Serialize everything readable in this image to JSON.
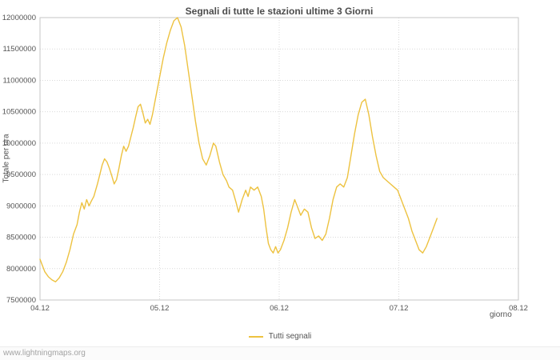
{
  "page": {
    "watermark": "www.lightningmaps.org"
  },
  "chart_data": {
    "type": "line",
    "title": "Segnali di tutte le stazioni ultime 3 Giorni",
    "xlabel": "giorno",
    "ylabel": "Totale per ora",
    "x_ticks": [
      "04.12",
      "05.12",
      "06.12",
      "07.12",
      "08.12"
    ],
    "x_range": [
      0,
      4
    ],
    "ylim": [
      7500000,
      12000000
    ],
    "y_tick_step": 500000,
    "grid": true,
    "legend": {
      "position": "bottom-center",
      "entries": [
        {
          "label": "Tutti segnali",
          "color": "#edc240"
        }
      ]
    },
    "series": [
      {
        "name": "Tutti segnali",
        "color": "#edc240",
        "points": [
          [
            0.0,
            8150000
          ],
          [
            0.02,
            8050000
          ],
          [
            0.04,
            7950000
          ],
          [
            0.07,
            7870000
          ],
          [
            0.1,
            7820000
          ],
          [
            0.13,
            7790000
          ],
          [
            0.16,
            7850000
          ],
          [
            0.19,
            7950000
          ],
          [
            0.22,
            8100000
          ],
          [
            0.25,
            8300000
          ],
          [
            0.28,
            8550000
          ],
          [
            0.31,
            8700000
          ],
          [
            0.33,
            8900000
          ],
          [
            0.35,
            9050000
          ],
          [
            0.37,
            8950000
          ],
          [
            0.39,
            9100000
          ],
          [
            0.41,
            9000000
          ],
          [
            0.43,
            9080000
          ],
          [
            0.45,
            9150000
          ],
          [
            0.48,
            9350000
          ],
          [
            0.5,
            9500000
          ],
          [
            0.52,
            9650000
          ],
          [
            0.54,
            9750000
          ],
          [
            0.56,
            9700000
          ],
          [
            0.58,
            9600000
          ],
          [
            0.6,
            9480000
          ],
          [
            0.62,
            9350000
          ],
          [
            0.64,
            9420000
          ],
          [
            0.66,
            9600000
          ],
          [
            0.68,
            9800000
          ],
          [
            0.7,
            9950000
          ],
          [
            0.72,
            9870000
          ],
          [
            0.74,
            9950000
          ],
          [
            0.76,
            10100000
          ],
          [
            0.78,
            10250000
          ],
          [
            0.8,
            10420000
          ],
          [
            0.82,
            10580000
          ],
          [
            0.84,
            10620000
          ],
          [
            0.86,
            10480000
          ],
          [
            0.88,
            10320000
          ],
          [
            0.9,
            10380000
          ],
          [
            0.92,
            10300000
          ],
          [
            0.94,
            10450000
          ],
          [
            0.96,
            10650000
          ],
          [
            0.98,
            10850000
          ],
          [
            1.0,
            11050000
          ],
          [
            1.03,
            11350000
          ],
          [
            1.06,
            11600000
          ],
          [
            1.09,
            11800000
          ],
          [
            1.12,
            11950000
          ],
          [
            1.15,
            12000000
          ],
          [
            1.18,
            11850000
          ],
          [
            1.21,
            11550000
          ],
          [
            1.24,
            11150000
          ],
          [
            1.27,
            10750000
          ],
          [
            1.3,
            10350000
          ],
          [
            1.33,
            10000000
          ],
          [
            1.36,
            9750000
          ],
          [
            1.39,
            9650000
          ],
          [
            1.42,
            9800000
          ],
          [
            1.45,
            10000000
          ],
          [
            1.47,
            9950000
          ],
          [
            1.5,
            9700000
          ],
          [
            1.53,
            9500000
          ],
          [
            1.56,
            9400000
          ],
          [
            1.58,
            9300000
          ],
          [
            1.61,
            9250000
          ],
          [
            1.64,
            9050000
          ],
          [
            1.66,
            8900000
          ],
          [
            1.69,
            9100000
          ],
          [
            1.72,
            9250000
          ],
          [
            1.74,
            9150000
          ],
          [
            1.76,
            9300000
          ],
          [
            1.79,
            9250000
          ],
          [
            1.82,
            9300000
          ],
          [
            1.85,
            9150000
          ],
          [
            1.87,
            8950000
          ],
          [
            1.89,
            8650000
          ],
          [
            1.91,
            8400000
          ],
          [
            1.93,
            8300000
          ],
          [
            1.95,
            8250000
          ],
          [
            1.97,
            8350000
          ],
          [
            1.99,
            8250000
          ],
          [
            2.01,
            8300000
          ],
          [
            2.04,
            8450000
          ],
          [
            2.07,
            8650000
          ],
          [
            2.1,
            8900000
          ],
          [
            2.13,
            9100000
          ],
          [
            2.15,
            9000000
          ],
          [
            2.18,
            8850000
          ],
          [
            2.21,
            8950000
          ],
          [
            2.24,
            8900000
          ],
          [
            2.27,
            8650000
          ],
          [
            2.3,
            8480000
          ],
          [
            2.33,
            8520000
          ],
          [
            2.36,
            8450000
          ],
          [
            2.39,
            8550000
          ],
          [
            2.42,
            8800000
          ],
          [
            2.45,
            9100000
          ],
          [
            2.48,
            9300000
          ],
          [
            2.51,
            9350000
          ],
          [
            2.54,
            9300000
          ],
          [
            2.57,
            9450000
          ],
          [
            2.6,
            9800000
          ],
          [
            2.63,
            10150000
          ],
          [
            2.66,
            10450000
          ],
          [
            2.69,
            10650000
          ],
          [
            2.72,
            10700000
          ],
          [
            2.75,
            10450000
          ],
          [
            2.78,
            10100000
          ],
          [
            2.81,
            9800000
          ],
          [
            2.84,
            9550000
          ],
          [
            2.87,
            9450000
          ],
          [
            2.9,
            9400000
          ],
          [
            2.93,
            9350000
          ],
          [
            2.96,
            9300000
          ],
          [
            2.99,
            9250000
          ],
          [
            3.02,
            9100000
          ],
          [
            3.05,
            8950000
          ],
          [
            3.08,
            8800000
          ],
          [
            3.11,
            8600000
          ],
          [
            3.14,
            8450000
          ],
          [
            3.17,
            8300000
          ],
          [
            3.2,
            8250000
          ],
          [
            3.23,
            8350000
          ],
          [
            3.26,
            8500000
          ],
          [
            3.29,
            8650000
          ],
          [
            3.32,
            8800000
          ]
        ]
      }
    ]
  }
}
